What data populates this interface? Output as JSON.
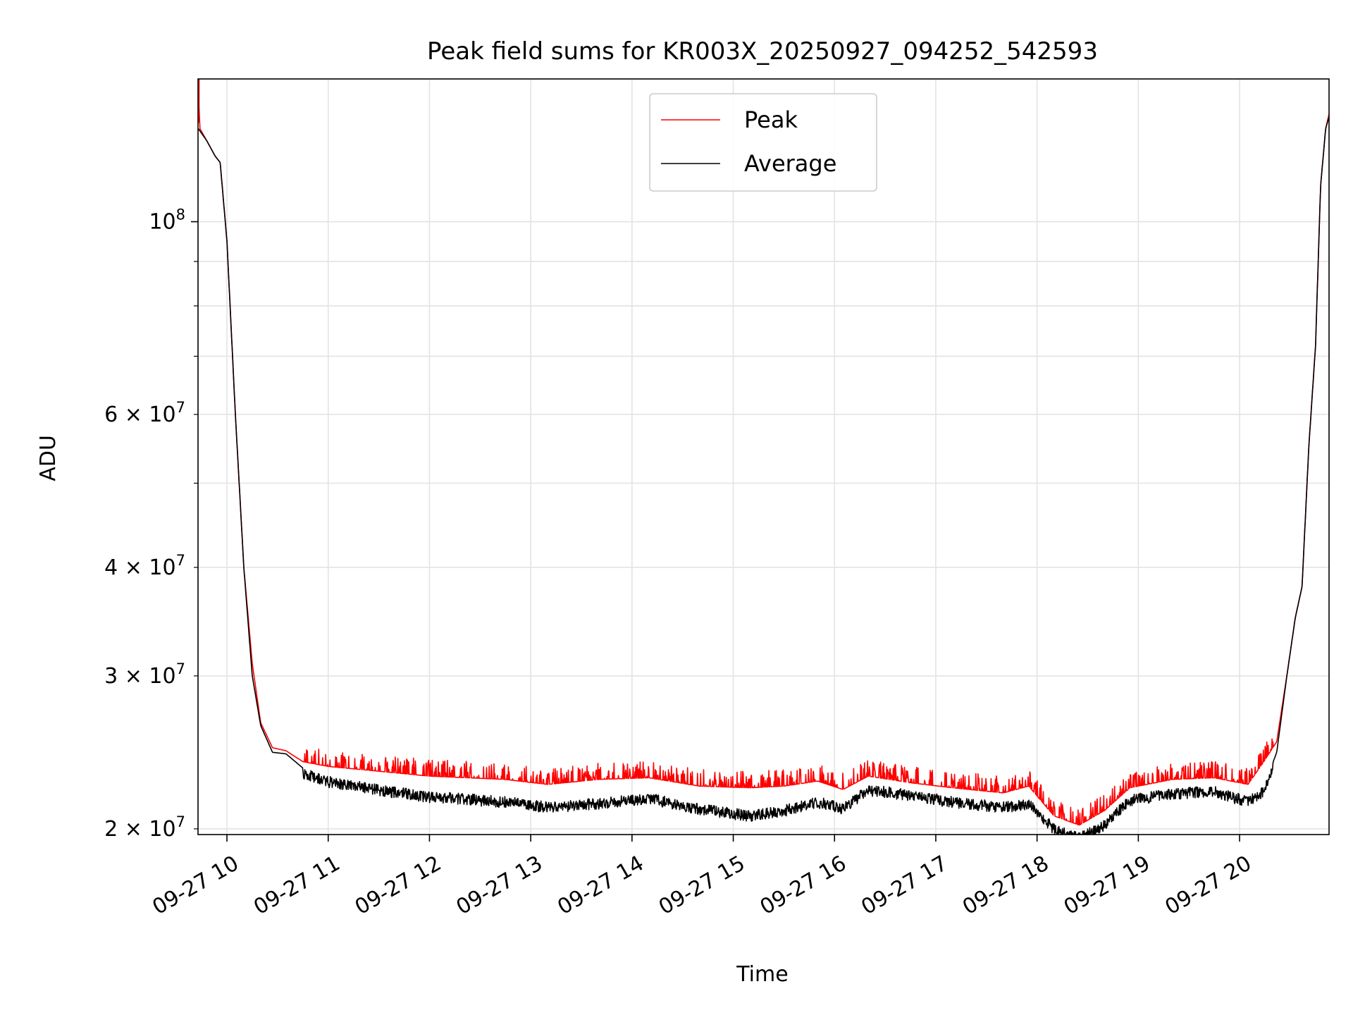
{
  "chart_data": {
    "type": "line",
    "title": "Peak field sums for KR003X_20250927_094252_542593",
    "xlabel": "Time",
    "ylabel": "ADU",
    "yscale": "log",
    "ylim": [
      19700000,
      146000000
    ],
    "xlim": [
      "2025-09-27 09:42:52",
      "2025-09-27 20:53:00"
    ],
    "grid": true,
    "legend": "upper center",
    "x_tick_labels": [
      "09-27 10",
      "09-27 11",
      "09-27 12",
      "09-27 13",
      "09-27 14",
      "09-27 15",
      "09-27 16",
      "09-27 17",
      "09-27 18",
      "09-27 19",
      "09-27 20"
    ],
    "y_major_ticks": [
      {
        "value": 100000000,
        "mant": "",
        "exp": "8"
      }
    ],
    "y_minor_ticks": [
      {
        "value": 20000000,
        "mant": "2",
        "exp": "7"
      },
      {
        "value": 30000000,
        "mant": "3",
        "exp": "7"
      },
      {
        "value": 40000000,
        "mant": "4",
        "exp": "7"
      },
      {
        "value": 60000000,
        "mant": "6",
        "exp": "7"
      }
    ],
    "y_unlabeled_minor": [
      50000000,
      70000000,
      80000000,
      90000000
    ],
    "series": [
      {
        "name": "Peak",
        "color": "#ff0000",
        "points": [
          [
            "2025-09-27 09:43",
            143000000
          ],
          [
            "2025-09-27 09:44",
            128000000
          ],
          [
            "2025-09-27 09:48",
            124000000
          ],
          [
            "2025-09-27 09:53",
            119000000
          ],
          [
            "2025-09-27 09:56",
            117000000
          ],
          [
            "2025-09-27 10:00",
            95000000
          ],
          [
            "2025-09-27 10:05",
            60000000
          ],
          [
            "2025-09-27 10:10",
            40000000
          ],
          [
            "2025-09-27 10:15",
            31000000
          ],
          [
            "2025-09-27 10:20",
            26500000
          ],
          [
            "2025-09-27 10:27",
            24800000
          ],
          [
            "2025-09-27 10:35",
            24600000
          ],
          [
            "2025-09-27 10:45",
            23900000
          ],
          [
            "2025-09-27 11:00",
            23600000
          ],
          [
            "2025-09-27 11:30",
            23300000
          ],
          [
            "2025-09-27 12:00",
            23000000
          ],
          [
            "2025-09-27 12:45",
            22800000
          ],
          [
            "2025-09-27 13:10",
            22500000
          ],
          [
            "2025-09-27 13:40",
            22800000
          ],
          [
            "2025-09-27 14:10",
            22900000
          ],
          [
            "2025-09-27 14:40",
            22400000
          ],
          [
            "2025-09-27 15:10",
            22300000
          ],
          [
            "2025-09-27 15:30",
            22400000
          ],
          [
            "2025-09-27 15:50",
            22700000
          ],
          [
            "2025-09-27 16:05",
            22200000
          ],
          [
            "2025-09-27 16:20",
            23000000
          ],
          [
            "2025-09-27 16:45",
            22600000
          ],
          [
            "2025-09-27 17:10",
            22300000
          ],
          [
            "2025-09-27 17:40",
            22000000
          ],
          [
            "2025-09-27 17:55",
            22400000
          ],
          [
            "2025-09-27 18:10",
            20700000
          ],
          [
            "2025-09-27 18:25",
            20200000
          ],
          [
            "2025-09-27 18:40",
            21000000
          ],
          [
            "2025-09-27 18:55",
            22300000
          ],
          [
            "2025-09-27 19:20",
            22800000
          ],
          [
            "2025-09-27 19:45",
            22900000
          ],
          [
            "2025-09-27 20:05",
            22500000
          ],
          [
            "2025-09-27 20:15",
            24000000
          ],
          [
            "2025-09-27 20:22",
            25200000
          ],
          [
            "2025-09-27 20:28",
            30000000
          ],
          [
            "2025-09-27 20:33",
            35000000
          ],
          [
            "2025-09-27 20:37",
            38000000
          ],
          [
            "2025-09-27 20:41",
            55000000
          ],
          [
            "2025-09-27 20:45",
            72000000
          ],
          [
            "2025-09-27 20:48",
            110000000
          ],
          [
            "2025-09-27 20:51",
            128000000
          ],
          [
            "2025-09-27 20:53",
            133000000
          ]
        ]
      },
      {
        "name": "Average",
        "color": "#000000",
        "points": [
          [
            "2025-09-27 09:43",
            128000000
          ],
          [
            "2025-09-27 09:48",
            124000000
          ],
          [
            "2025-09-27 09:53",
            119000000
          ],
          [
            "2025-09-27 09:56",
            117000000
          ],
          [
            "2025-09-27 10:00",
            95000000
          ],
          [
            "2025-09-27 10:05",
            60000000
          ],
          [
            "2025-09-27 10:10",
            40000000
          ],
          [
            "2025-09-27 10:15",
            30000000
          ],
          [
            "2025-09-27 10:20",
            26300000
          ],
          [
            "2025-09-27 10:27",
            24500000
          ],
          [
            "2025-09-27 10:35",
            24400000
          ],
          [
            "2025-09-27 10:45",
            23500000
          ],
          [
            "2025-09-27 11:00",
            23000000
          ],
          [
            "2025-09-27 11:30",
            22500000
          ],
          [
            "2025-09-27 12:00",
            22100000
          ],
          [
            "2025-09-27 12:45",
            21800000
          ],
          [
            "2025-09-27 13:10",
            21500000
          ],
          [
            "2025-09-27 13:40",
            21700000
          ],
          [
            "2025-09-27 14:10",
            22000000
          ],
          [
            "2025-09-27 14:40",
            21400000
          ],
          [
            "2025-09-27 15:10",
            21000000
          ],
          [
            "2025-09-27 15:30",
            21300000
          ],
          [
            "2025-09-27 15:50",
            21800000
          ],
          [
            "2025-09-27 16:05",
            21400000
          ],
          [
            "2025-09-27 16:20",
            22500000
          ],
          [
            "2025-09-27 16:45",
            22200000
          ],
          [
            "2025-09-27 17:10",
            21800000
          ],
          [
            "2025-09-27 17:40",
            21500000
          ],
          [
            "2025-09-27 17:55",
            21700000
          ],
          [
            "2025-09-27 18:10",
            20300000
          ],
          [
            "2025-09-27 18:25",
            19800000
          ],
          [
            "2025-09-27 18:40",
            20500000
          ],
          [
            "2025-09-27 18:55",
            21900000
          ],
          [
            "2025-09-27 19:20",
            22300000
          ],
          [
            "2025-09-27 19:45",
            22400000
          ],
          [
            "2025-09-27 20:05",
            21800000
          ],
          [
            "2025-09-27 20:15",
            22500000
          ],
          [
            "2025-09-27 20:22",
            24500000
          ],
          [
            "2025-09-27 20:28",
            30000000
          ],
          [
            "2025-09-27 20:33",
            35000000
          ],
          [
            "2025-09-27 20:37",
            38000000
          ],
          [
            "2025-09-27 20:41",
            55000000
          ],
          [
            "2025-09-27 20:45",
            72000000
          ],
          [
            "2025-09-27 20:48",
            110000000
          ],
          [
            "2025-09-27 20:51",
            128000000
          ],
          [
            "2025-09-27 20:53",
            132000000
          ]
        ]
      }
    ]
  }
}
